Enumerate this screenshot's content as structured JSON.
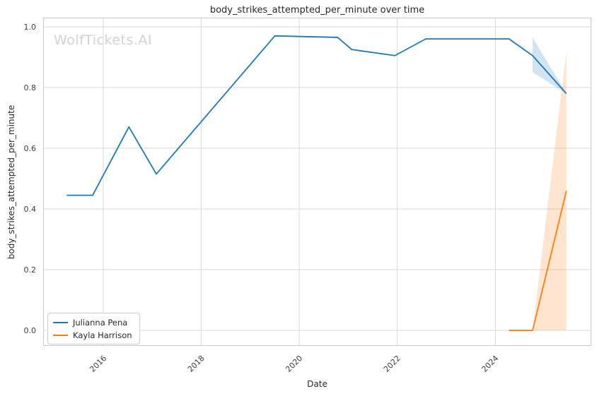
{
  "watermark": "WolfTickets.AI",
  "colors": {
    "grid": "#d9d9d9",
    "spine": "#c8c8c8",
    "text": "#262626",
    "watermark": "#d2d2d2",
    "background": "#ffffff"
  },
  "chart_data": {
    "type": "line",
    "title": "body_strikes_attempted_per_minute over time",
    "xlabel": "Date",
    "ylabel": "body_strikes_attempted_per_minute",
    "grid": true,
    "legend_position": "lower left",
    "xlim": [
      2014.77,
      2025.96
    ],
    "ylim": [
      -0.051,
      1.03
    ],
    "x_ticks": [
      {
        "v": 2016,
        "label": "2016"
      },
      {
        "v": 2018,
        "label": "2018"
      },
      {
        "v": 2020,
        "label": "2020"
      },
      {
        "v": 2022,
        "label": "2022"
      },
      {
        "v": 2024,
        "label": "2024"
      }
    ],
    "y_ticks": [
      {
        "v": 0.0,
        "label": "0.0"
      },
      {
        "v": 0.2,
        "label": "0.2"
      },
      {
        "v": 0.4,
        "label": "0.4"
      },
      {
        "v": 0.6,
        "label": "0.6"
      },
      {
        "v": 0.8,
        "label": "0.8"
      },
      {
        "v": 1.0,
        "label": "1.0"
      }
    ],
    "series": [
      {
        "name": "Julianna Pena",
        "color": "#1f77b4",
        "x": [
          2015.25,
          2015.78,
          2016.52,
          2017.08,
          2019.5,
          2020.78,
          2021.07,
          2021.95,
          2022.58,
          2024.28,
          2024.76,
          2025.45
        ],
        "y": [
          0.445,
          0.445,
          0.67,
          0.515,
          0.97,
          0.965,
          0.925,
          0.905,
          0.96,
          0.96,
          0.905,
          0.78
        ],
        "band": {
          "x": [
            2024.76,
            2025.45
          ],
          "upper": [
            0.965,
            0.78
          ],
          "lower": [
            0.85,
            0.78
          ]
        }
      },
      {
        "name": "Kayla Harrison",
        "color": "#ff7f0e",
        "x": [
          2024.28,
          2024.76,
          2025.45
        ],
        "y": [
          0.0,
          0.0,
          0.46
        ],
        "band": {
          "x": [
            2024.76,
            2025.45
          ],
          "upper": [
            0.0,
            0.92
          ],
          "lower": [
            0.0,
            0.0
          ]
        }
      }
    ]
  },
  "legend": {
    "items": [
      {
        "label": "Julianna Pena"
      },
      {
        "label": "Kayla Harrison"
      }
    ]
  }
}
